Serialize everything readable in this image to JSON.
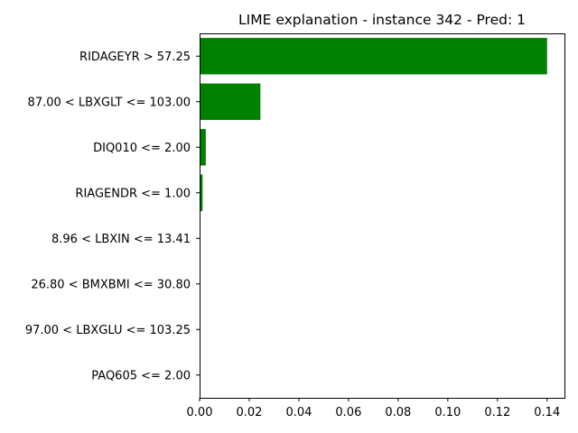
{
  "chart_data": {
    "type": "bar",
    "orientation": "horizontal",
    "title": "LIME explanation - instance 342 - Pred: 1",
    "xlabel": "",
    "ylabel": "",
    "xlim": [
      0,
      0.147
    ],
    "x_ticks": [
      0.0,
      0.02,
      0.04,
      0.06,
      0.08,
      0.1,
      0.12,
      0.14
    ],
    "x_tick_labels": [
      "0.00",
      "0.02",
      "0.04",
      "0.06",
      "0.08",
      "0.10",
      "0.12",
      "0.14"
    ],
    "grid": false,
    "legend": "none",
    "bar_color": "#008000",
    "categories": [
      "RIDAGEYR > 57.25",
      "87.00 < LBXGLT <= 103.00",
      "DIQ010 <= 2.00",
      "RIAGENDR <= 1.00",
      "8.96 < LBXIN <= 13.41",
      "26.80 < BMXBMI <= 30.80",
      "97.00 < LBXGLU <= 103.25",
      "PAQ605 <= 2.00"
    ],
    "values": [
      0.14,
      0.0245,
      0.0025,
      0.0012,
      0.0,
      0.0,
      0.0,
      0.0
    ]
  }
}
